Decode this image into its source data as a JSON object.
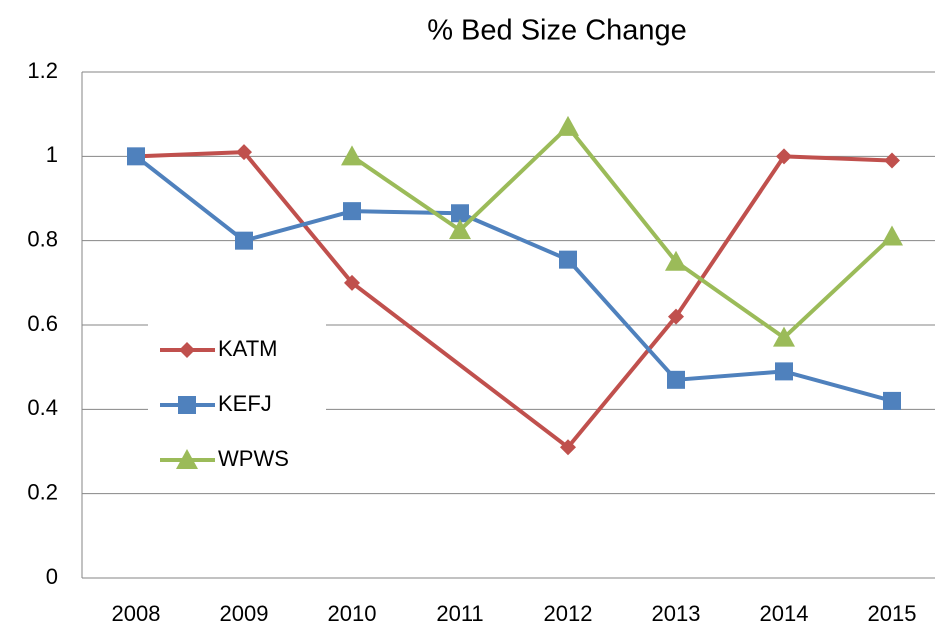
{
  "chart_data": {
    "type": "line",
    "title": "% Bed Size Change",
    "categories": [
      "2008",
      "2009",
      "2010",
      "2011",
      "2012",
      "2013",
      "2014",
      "2015"
    ],
    "series": [
      {
        "name": "KATM",
        "color": "#c0504d",
        "marker": "diamond",
        "values": [
          1,
          1.01,
          0.7,
          null,
          0.31,
          0.62,
          1,
          0.99
        ]
      },
      {
        "name": "KEFJ",
        "color": "#4f81bd",
        "marker": "square",
        "values": [
          1,
          0.8,
          0.87,
          0.865,
          0.755,
          0.47,
          0.49,
          0.42
        ]
      },
      {
        "name": "WPWS",
        "color": "#9bbb59",
        "marker": "triangle",
        "values": [
          null,
          null,
          1,
          0.825,
          1.07,
          0.75,
          0.57,
          0.81
        ]
      }
    ],
    "ylim": [
      0,
      1.2
    ],
    "yticks": [
      0,
      0.2,
      0.4,
      0.6,
      0.8,
      1,
      1.2
    ],
    "grid": true,
    "connect_gaps": true,
    "legend": "left"
  }
}
